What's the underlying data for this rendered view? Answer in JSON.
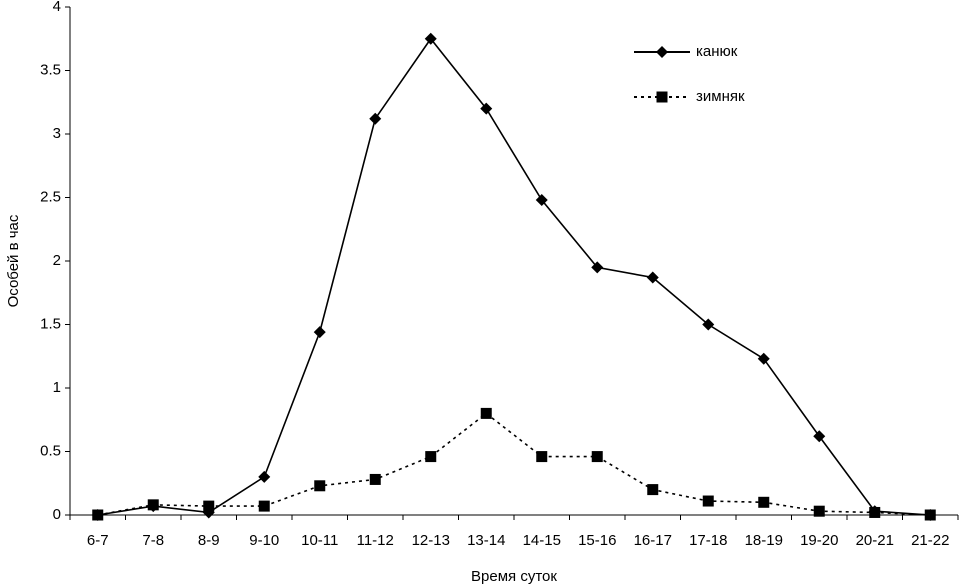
{
  "chart_data": {
    "type": "line",
    "xlabel": "Время суток",
    "ylabel": "Особей в час",
    "categories": [
      "6-7",
      "7-8",
      "8-9",
      "9-10",
      "10-11",
      "11-12",
      "12-13",
      "13-14",
      "14-15",
      "15-16",
      "16-17",
      "17-18",
      "18-19",
      "19-20",
      "20-21",
      "21-22"
    ],
    "series": [
      {
        "name": "канюк",
        "color": "#000000",
        "marker": "diamond",
        "dash": false,
        "values": [
          0,
          0.07,
          0.02,
          0.3,
          1.44,
          3.12,
          3.75,
          3.2,
          2.48,
          1.95,
          1.87,
          1.5,
          1.23,
          0.62,
          0.03,
          0
        ]
      },
      {
        "name": "зимняк",
        "color": "#000000",
        "marker": "square",
        "dash": true,
        "values": [
          0,
          0.08,
          0.07,
          0.07,
          0.23,
          0.28,
          0.46,
          0.8,
          0.46,
          0.46,
          0.2,
          0.11,
          0.1,
          0.03,
          0.02,
          0
        ]
      }
    ],
    "ylim": [
      0,
      4
    ],
    "yticks": [
      0,
      0.5,
      1,
      1.5,
      2,
      2.5,
      3,
      3.5,
      4
    ],
    "grid": false,
    "legend": "top-right"
  }
}
